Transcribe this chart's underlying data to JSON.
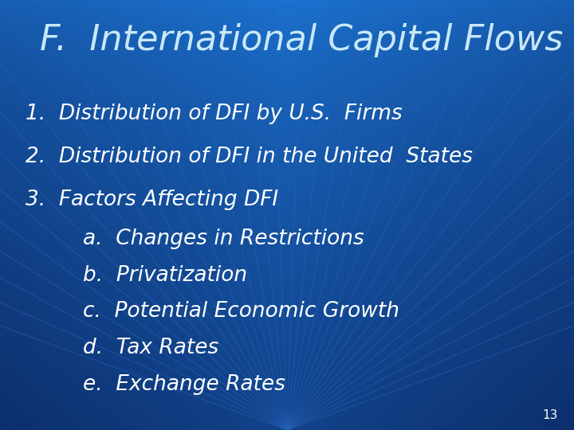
{
  "title": "F.  International Capital Flows",
  "title_color": "#c8e8f8",
  "text_color": "#ffffff",
  "slide_number": "13",
  "title_fontsize": 32,
  "body_fontsize": 19,
  "number_fontsize": 11,
  "bg_bright": [
    0.11,
    0.45,
    0.82
  ],
  "bg_dark": [
    0.05,
    0.18,
    0.42
  ],
  "line_color": [
    0.15,
    0.38,
    0.72
  ],
  "lines": [
    {
      "text": "1.  Distribution of DFI by U.S.  Firms",
      "xf": 0.045,
      "yf": 0.735
    },
    {
      "text": "2.  Distribution of DFI in the United  States",
      "xf": 0.045,
      "yf": 0.635
    },
    {
      "text": "3.  Factors Affecting DFI",
      "xf": 0.045,
      "yf": 0.535
    },
    {
      "text": "a.  Changes in Restrictions",
      "xf": 0.145,
      "yf": 0.445
    },
    {
      "text": "b.  Privatization",
      "xf": 0.145,
      "yf": 0.36
    },
    {
      "text": "c.  Potential Economic Growth",
      "xf": 0.145,
      "yf": 0.275
    },
    {
      "text": "d.  Tax Rates",
      "xf": 0.145,
      "yf": 0.19
    },
    {
      "text": "e.  Exchange Rates",
      "xf": 0.145,
      "yf": 0.105
    }
  ]
}
